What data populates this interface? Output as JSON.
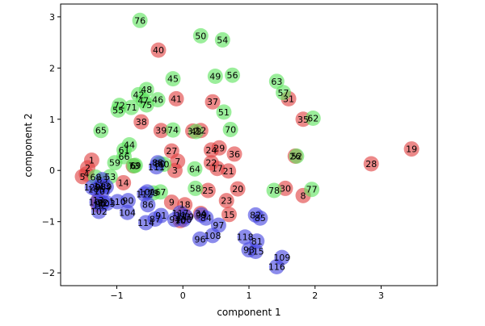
{
  "chart_data": {
    "type": "scatter",
    "title": "",
    "xlabel": "component 1",
    "ylabel": "component 2",
    "xlim": [
      -1.85,
      3.85
    ],
    "ylim": [
      -2.25,
      3.25
    ],
    "grid": false,
    "x_ticks": [
      -1,
      0,
      1,
      2,
      3
    ],
    "y_ticks": [
      -2,
      -1,
      0,
      1,
      2,
      3
    ],
    "colors": {
      "red": "#e04040",
      "green": "#5ee45e",
      "blue": "#4646e0"
    },
    "points": [
      {
        "id": "1",
        "x": -1.38,
        "y": 0.2,
        "color": "red"
      },
      {
        "id": "2",
        "x": -1.44,
        "y": 0.05,
        "color": "red"
      },
      {
        "id": "3",
        "x": -0.12,
        "y": 0.0,
        "color": "red"
      },
      {
        "id": "4",
        "x": -1.46,
        "y": -0.07,
        "color": "red"
      },
      {
        "id": "5",
        "x": -1.52,
        "y": -0.12,
        "color": "red"
      },
      {
        "id": "6",
        "x": -0.75,
        "y": 0.09,
        "color": "red"
      },
      {
        "id": "7",
        "x": -0.08,
        "y": 0.18,
        "color": "red"
      },
      {
        "id": "8",
        "x": 1.82,
        "y": -0.49,
        "color": "red"
      },
      {
        "id": "9",
        "x": -0.17,
        "y": -0.62,
        "color": "red"
      },
      {
        "id": "10",
        "x": -0.04,
        "y": -0.98,
        "color": "red"
      },
      {
        "id": "11",
        "x": -0.03,
        "y": -0.87,
        "color": "red"
      },
      {
        "id": "12",
        "x": 0.27,
        "y": 0.78,
        "color": "red"
      },
      {
        "id": "13",
        "x": -1.28,
        "y": -0.58,
        "color": "red"
      },
      {
        "id": "14",
        "x": -0.9,
        "y": -0.24,
        "color": "red"
      },
      {
        "id": "15",
        "x": 0.7,
        "y": -0.86,
        "color": "red"
      },
      {
        "id": "16",
        "x": -1.28,
        "y": -0.68,
        "color": "red"
      },
      {
        "id": "17",
        "x": 0.52,
        "y": 0.04,
        "color": "red"
      },
      {
        "id": "18",
        "x": 0.03,
        "y": -0.67,
        "color": "red"
      },
      {
        "id": "19",
        "x": 3.46,
        "y": 0.42,
        "color": "red"
      },
      {
        "id": "20",
        "x": 0.83,
        "y": -0.36,
        "color": "red"
      },
      {
        "id": "21",
        "x": 0.69,
        "y": -0.01,
        "color": "red"
      },
      {
        "id": "22",
        "x": 0.43,
        "y": 0.15,
        "color": "red"
      },
      {
        "id": "23",
        "x": 0.66,
        "y": -0.59,
        "color": "red"
      },
      {
        "id": "24",
        "x": 0.43,
        "y": 0.4,
        "color": "red"
      },
      {
        "id": "25",
        "x": 0.38,
        "y": -0.39,
        "color": "red"
      },
      {
        "id": "26",
        "x": 1.7,
        "y": 0.28,
        "color": "red"
      },
      {
        "id": "27",
        "x": -0.17,
        "y": 0.38,
        "color": "red"
      },
      {
        "id": "28",
        "x": 2.85,
        "y": 0.13,
        "color": "red"
      },
      {
        "id": "29",
        "x": 0.55,
        "y": 0.44,
        "color": "red"
      },
      {
        "id": "30",
        "x": 1.55,
        "y": -0.35,
        "color": "red"
      },
      {
        "id": "31",
        "x": 1.6,
        "y": 1.4,
        "color": "red"
      },
      {
        "id": "32",
        "x": 0.15,
        "y": 0.77,
        "color": "red"
      },
      {
        "id": "33",
        "x": 0.03,
        "y": -0.9,
        "color": "red"
      },
      {
        "id": "34",
        "x": 0.27,
        "y": -0.84,
        "color": "red"
      },
      {
        "id": "35",
        "x": 1.82,
        "y": 1.0,
        "color": "red"
      },
      {
        "id": "36",
        "x": 0.78,
        "y": 0.32,
        "color": "red"
      },
      {
        "id": "37",
        "x": 0.45,
        "y": 1.34,
        "color": "red"
      },
      {
        "id": "38",
        "x": -0.63,
        "y": 0.95,
        "color": "red"
      },
      {
        "id": "39",
        "x": -0.33,
        "y": 0.78,
        "color": "red"
      },
      {
        "id": "40",
        "x": -0.37,
        "y": 2.35,
        "color": "red"
      },
      {
        "id": "41",
        "x": -0.1,
        "y": 1.4,
        "color": "red"
      },
      {
        "id": "42",
        "x": -0.67,
        "y": 1.48,
        "color": "green"
      },
      {
        "id": "43",
        "x": 0.2,
        "y": 0.76,
        "color": "green"
      },
      {
        "id": "44",
        "x": -0.81,
        "y": 0.5,
        "color": "green"
      },
      {
        "id": "45",
        "x": -0.15,
        "y": 1.79,
        "color": "green"
      },
      {
        "id": "46",
        "x": -0.38,
        "y": 1.38,
        "color": "green"
      },
      {
        "id": "47",
        "x": -0.6,
        "y": 1.37,
        "color": "green"
      },
      {
        "id": "48",
        "x": -0.55,
        "y": 1.58,
        "color": "green"
      },
      {
        "id": "49",
        "x": 0.49,
        "y": 1.84,
        "color": "green"
      },
      {
        "id": "50",
        "x": 0.27,
        "y": 2.63,
        "color": "green"
      },
      {
        "id": "51",
        "x": 0.62,
        "y": 1.14,
        "color": "green"
      },
      {
        "id": "52",
        "x": 1.72,
        "y": 0.28,
        "color": "green"
      },
      {
        "id": "53",
        "x": -1.1,
        "y": -0.12,
        "color": "green"
      },
      {
        "id": "54",
        "x": 0.6,
        "y": 2.55,
        "color": "green"
      },
      {
        "id": "55",
        "x": -0.98,
        "y": 1.18,
        "color": "green"
      },
      {
        "id": "56",
        "x": 0.75,
        "y": 1.86,
        "color": "green"
      },
      {
        "id": "57",
        "x": 1.52,
        "y": 1.52,
        "color": "green"
      },
      {
        "id": "58",
        "x": 0.19,
        "y": -0.35,
        "color": "green"
      },
      {
        "id": "59",
        "x": -1.03,
        "y": 0.15,
        "color": "green"
      },
      {
        "id": "60",
        "x": -0.29,
        "y": 0.12,
        "color": "green"
      },
      {
        "id": "61",
        "x": -0.89,
        "y": 0.4,
        "color": "green"
      },
      {
        "id": "62",
        "x": 1.97,
        "y": 1.02,
        "color": "green"
      },
      {
        "id": "63",
        "x": 1.42,
        "y": 1.74,
        "color": "green"
      },
      {
        "id": "64",
        "x": 0.18,
        "y": 0.03,
        "color": "green"
      },
      {
        "id": "65",
        "x": -1.24,
        "y": 0.78,
        "color": "green"
      },
      {
        "id": "66",
        "x": -0.89,
        "y": 0.27,
        "color": "green"
      },
      {
        "id": "67",
        "x": -0.34,
        "y": -0.42,
        "color": "green"
      },
      {
        "id": "68",
        "x": -1.32,
        "y": -0.13,
        "color": "green"
      },
      {
        "id": "69",
        "x": -0.72,
        "y": 0.1,
        "color": "green"
      },
      {
        "id": "70",
        "x": 0.72,
        "y": 0.8,
        "color": "green"
      },
      {
        "id": "71",
        "x": -0.78,
        "y": 1.23,
        "color": "green"
      },
      {
        "id": "72",
        "x": -0.96,
        "y": 1.27,
        "color": "green"
      },
      {
        "id": "73",
        "x": -0.74,
        "y": 0.09,
        "color": "green"
      },
      {
        "id": "74",
        "x": -0.15,
        "y": 0.79,
        "color": "green"
      },
      {
        "id": "75",
        "x": -0.55,
        "y": 1.28,
        "color": "green"
      },
      {
        "id": "76",
        "x": -0.65,
        "y": 2.93,
        "color": "green"
      },
      {
        "id": "77",
        "x": 1.95,
        "y": -0.37,
        "color": "green"
      },
      {
        "id": "78",
        "x": 1.38,
        "y": -0.39,
        "color": "green"
      },
      {
        "id": "79",
        "x": -0.45,
        "y": -0.44,
        "color": "green"
      },
      {
        "id": "80",
        "x": -0.35,
        "y": 0.13,
        "color": "green"
      },
      {
        "id": "81",
        "x": 1.12,
        "y": -1.38,
        "color": "blue"
      },
      {
        "id": "82",
        "x": 1.1,
        "y": -0.87,
        "color": "blue"
      },
      {
        "id": "83",
        "x": -1.22,
        "y": -0.18,
        "color": "blue"
      },
      {
        "id": "84",
        "x": 0.35,
        "y": -0.93,
        "color": "blue"
      },
      {
        "id": "85",
        "x": 1.17,
        "y": -0.93,
        "color": "blue"
      },
      {
        "id": "86",
        "x": -0.53,
        "y": -0.67,
        "color": "blue"
      },
      {
        "id": "87",
        "x": -0.42,
        "y": -0.95,
        "color": "blue"
      },
      {
        "id": "88",
        "x": -0.38,
        "y": 0.15,
        "color": "blue"
      },
      {
        "id": "89",
        "x": -1.16,
        "y": -0.32,
        "color": "blue"
      },
      {
        "id": "90",
        "x": -0.83,
        "y": -0.59,
        "color": "blue"
      },
      {
        "id": "91",
        "x": -0.33,
        "y": -0.88,
        "color": "blue"
      },
      {
        "id": "92",
        "x": -1.21,
        "y": -0.63,
        "color": "blue"
      },
      {
        "id": "93",
        "x": 1.0,
        "y": -1.55,
        "color": "blue"
      },
      {
        "id": "94",
        "x": -0.12,
        "y": -0.96,
        "color": "blue"
      },
      {
        "id": "95",
        "x": -1.24,
        "y": -0.65,
        "color": "blue"
      },
      {
        "id": "96",
        "x": 0.26,
        "y": -1.34,
        "color": "blue"
      },
      {
        "id": "97",
        "x": 0.54,
        "y": -1.07,
        "color": "blue"
      },
      {
        "id": "98",
        "x": -1.25,
        "y": -0.32,
        "color": "blue"
      },
      {
        "id": "99",
        "x": 0.28,
        "y": -0.87,
        "color": "blue"
      },
      {
        "id": "100",
        "x": 0.01,
        "y": -0.96,
        "color": "blue"
      },
      {
        "id": "101",
        "x": -0.54,
        "y": -0.42,
        "color": "blue"
      },
      {
        "id": "102",
        "x": -1.27,
        "y": -0.8,
        "color": "blue"
      },
      {
        "id": "103",
        "x": -1.15,
        "y": -0.64,
        "color": "blue"
      },
      {
        "id": "104",
        "x": -0.84,
        "y": -0.82,
        "color": "blue"
      },
      {
        "id": "105",
        "x": -1.31,
        "y": -0.37,
        "color": "blue"
      },
      {
        "id": "106",
        "x": -1.3,
        "y": -0.62,
        "color": "blue"
      },
      {
        "id": "107",
        "x": -1.22,
        "y": -0.41,
        "color": "blue"
      },
      {
        "id": "108",
        "x": 0.45,
        "y": -1.27,
        "color": "blue"
      },
      {
        "id": "109",
        "x": 1.5,
        "y": -1.7,
        "color": "blue"
      },
      {
        "id": "110",
        "x": -0.99,
        "y": -0.61,
        "color": "blue"
      },
      {
        "id": "111",
        "x": -0.4,
        "y": 0.07,
        "color": "blue"
      },
      {
        "id": "112",
        "x": -0.58,
        "y": -0.46,
        "color": "blue"
      },
      {
        "id": "113",
        "x": -1.22,
        "y": -0.3,
        "color": "blue"
      },
      {
        "id": "114",
        "x": -0.56,
        "y": -1.02,
        "color": "blue"
      },
      {
        "id": "115",
        "x": 1.1,
        "y": -1.58,
        "color": "blue"
      },
      {
        "id": "116",
        "x": 1.42,
        "y": -1.88,
        "color": "blue"
      },
      {
        "id": "117",
        "x": -0.04,
        "y": -0.83,
        "color": "blue"
      },
      {
        "id": "118",
        "x": 0.94,
        "y": -1.3,
        "color": "blue"
      },
      {
        "id": "119",
        "x": 0.04,
        "y": -0.9,
        "color": "blue"
      },
      {
        "id": "120",
        "x": -1.37,
        "y": -0.33,
        "color": "blue"
      }
    ]
  }
}
